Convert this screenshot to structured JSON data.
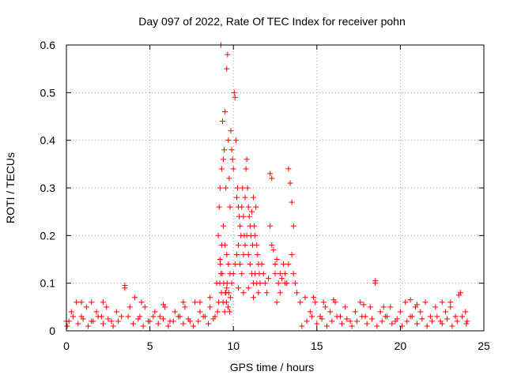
{
  "chart_data": {
    "type": "scatter",
    "title": "Day 097 of 2022, Rate Of TEC Index for receiver pohn",
    "xlabel": "GPS time / hours",
    "ylabel": "ROTI / TECUs",
    "xlim": [
      0,
      25
    ],
    "ylim": [
      0,
      0.6
    ],
    "x_ticks": [
      0,
      5,
      10,
      15,
      20,
      25
    ],
    "y_ticks": [
      0,
      0.1,
      0.2,
      0.3,
      0.4,
      0.5,
      0.6
    ],
    "x_tick_labels": [
      "0",
      "5",
      "10",
      "15",
      "20",
      "25"
    ],
    "y_tick_labels": [
      "0",
      "0.1",
      "0.2",
      "0.3",
      "0.4",
      "0.5",
      "0.6"
    ],
    "grid": true,
    "marker": "+",
    "color": "#ff0000",
    "series": [
      {
        "x": [
          0.0,
          0.3,
          0.6,
          0.9,
          1.2,
          1.5,
          1.8,
          2.1,
          2.4,
          2.7,
          3.0,
          3.3,
          3.5,
          3.8,
          4.1,
          4.4,
          4.7,
          5.0,
          5.3,
          5.6,
          5.9,
          6.2,
          6.5,
          6.8,
          7.1,
          7.4,
          7.7,
          8.0,
          8.3,
          8.6,
          8.9,
          9.0,
          9.1,
          9.15,
          9.2,
          9.25,
          9.3,
          9.35,
          9.4,
          9.45,
          9.5,
          9.55,
          9.6,
          9.65,
          9.7,
          9.75,
          9.8,
          9.85,
          9.9,
          9.95,
          10.0,
          10.05,
          10.1,
          10.15,
          10.2,
          10.25,
          10.3,
          10.35,
          10.4,
          10.45,
          10.5,
          10.55,
          10.6,
          10.65,
          10.7,
          10.75,
          10.8,
          10.85,
          10.9,
          10.95,
          11.0,
          11.05,
          11.1,
          11.15,
          11.2,
          11.25,
          11.3,
          11.35,
          11.4,
          11.45,
          11.5,
          11.55,
          11.6,
          11.7,
          11.8,
          11.9,
          12.0,
          12.1,
          12.2,
          12.3,
          12.4,
          12.5,
          12.6,
          12.7,
          12.8,
          12.9,
          13.0,
          13.1,
          13.2,
          13.3,
          13.4,
          13.5,
          13.6,
          13.7,
          13.8,
          14.0,
          14.3,
          14.6,
          14.9,
          15.2,
          15.5,
          15.8,
          16.1,
          16.4,
          16.7,
          17.0,
          17.3,
          17.6,
          17.9,
          18.2,
          18.5,
          18.8,
          19.1,
          19.4,
          19.7,
          20.0,
          20.3,
          20.6,
          20.9,
          21.2,
          21.5,
          21.8,
          22.1,
          22.4,
          22.7,
          23.0,
          23.3,
          23.6,
          23.9,
          24.0,
          9.2,
          9.25,
          9.3,
          9.4,
          9.5,
          9.6,
          9.7,
          9.8,
          9.9,
          10.0,
          10.1,
          10.2,
          10.3,
          10.4,
          10.5,
          10.6,
          10.7,
          10.8,
          10.9,
          11.0,
          11.1,
          11.2,
          11.3,
          11.4,
          11.5,
          12.2,
          12.3,
          12.5,
          12.8,
          13.1,
          13.3,
          13.5,
          13.6,
          9.55,
          9.6,
          10.3,
          10.6,
          10.9,
          11.2,
          12.6,
          3.5,
          18.5,
          0.9,
          7.0,
          8.0,
          8.6,
          16.0,
          17.8,
          20.6,
          22.5,
          23.5,
          23.0,
          4.5,
          5.8,
          1.5,
          2.2,
          14.8,
          15.4,
          19.0,
          21.0,
          0.05,
          0.15,
          0.4,
          0.7,
          1.0,
          1.3,
          1.6,
          1.9,
          2.2,
          2.5,
          2.8,
          3.1,
          3.7,
          4.0,
          4.3,
          4.6,
          4.9,
          5.2,
          5.5,
          5.8,
          6.1,
          6.4,
          6.7,
          7.0,
          7.3,
          7.6,
          7.9,
          8.2,
          8.5,
          8.8,
          14.1,
          14.4,
          14.7,
          15.0,
          15.3,
          15.6,
          15.9,
          16.2,
          16.5,
          16.8,
          17.1,
          17.4,
          17.7,
          18.0,
          18.3,
          18.6,
          18.9,
          19.2,
          19.5,
          19.8,
          20.1,
          20.4,
          20.7,
          21.0,
          21.3,
          21.6,
          21.9,
          22.2,
          22.5,
          22.8,
          23.1,
          23.4,
          23.7,
          23.95,
          9.05,
          9.12,
          9.18,
          9.22,
          9.28,
          9.33,
          9.38,
          9.42,
          9.48,
          9.52,
          9.58,
          9.62,
          9.68,
          9.72,
          9.78,
          9.82
        ],
        "y": [
          0.02,
          0.04,
          0.06,
          0.03,
          0.05,
          0.02,
          0.04,
          0.03,
          0.05,
          0.02,
          0.04,
          0.03,
          0.095,
          0.05,
          0.07,
          0.03,
          0.05,
          0.02,
          0.04,
          0.03,
          0.05,
          0.02,
          0.04,
          0.03,
          0.05,
          0.02,
          0.06,
          0.04,
          0.03,
          0.05,
          0.03,
          0.1,
          0.2,
          0.26,
          0.3,
          0.6,
          0.34,
          0.44,
          0.36,
          0.38,
          0.46,
          0.3,
          0.55,
          0.58,
          0.4,
          0.32,
          0.26,
          0.42,
          0.38,
          0.36,
          0.34,
          0.5,
          0.49,
          0.4,
          0.28,
          0.3,
          0.26,
          0.24,
          0.22,
          0.2,
          0.26,
          0.3,
          0.24,
          0.2,
          0.28,
          0.34,
          0.36,
          0.3,
          0.26,
          0.24,
          0.22,
          0.2,
          0.25,
          0.18,
          0.28,
          0.22,
          0.2,
          0.26,
          0.18,
          0.16,
          0.14,
          0.12,
          0.1,
          0.14,
          0.12,
          0.1,
          0.08,
          0.11,
          0.33,
          0.32,
          0.17,
          0.12,
          0.15,
          0.1,
          0.08,
          0.11,
          0.14,
          0.12,
          0.1,
          0.34,
          0.31,
          0.27,
          0.22,
          0.1,
          0.08,
          0.06,
          0.07,
          0.04,
          0.06,
          0.03,
          0.05,
          0.04,
          0.06,
          0.03,
          0.05,
          0.02,
          0.04,
          0.06,
          0.03,
          0.05,
          0.105,
          0.04,
          0.03,
          0.05,
          0.02,
          0.04,
          0.06,
          0.03,
          0.05,
          0.04,
          0.06,
          0.03,
          0.05,
          0.02,
          0.04,
          0.06,
          0.03,
          0.08,
          0.04,
          0.02,
          0.15,
          0.12,
          0.18,
          0.22,
          0.18,
          0.16,
          0.14,
          0.12,
          0.1,
          0.12,
          0.14,
          0.16,
          0.18,
          0.14,
          0.12,
          0.16,
          0.18,
          0.2,
          0.16,
          0.14,
          0.12,
          0.1,
          0.12,
          0.1,
          0.08,
          0.22,
          0.18,
          0.14,
          0.12,
          0.1,
          0.14,
          0.16,
          0.12,
          0.08,
          0.09,
          0.09,
          0.08,
          0.09,
          0.07,
          0.06,
          0.09,
          0.1,
          0.06,
          0.06,
          0.06,
          0.07,
          0.065,
          0.055,
          0.065,
          0.06,
          0.075,
          0.05,
          0.06,
          0.055,
          0.06,
          0.06,
          0.07,
          0.06,
          0.05,
          0.055,
          0.01,
          0.02,
          0.03,
          0.015,
          0.025,
          0.01,
          0.02,
          0.03,
          0.015,
          0.025,
          0.01,
          0.02,
          0.03,
          0.015,
          0.025,
          0.01,
          0.02,
          0.03,
          0.015,
          0.025,
          0.01,
          0.02,
          0.03,
          0.015,
          0.025,
          0.01,
          0.02,
          0.03,
          0.015,
          0.025,
          0.01,
          0.02,
          0.03,
          0.015,
          0.025,
          0.01,
          0.02,
          0.03,
          0.015,
          0.025,
          0.01,
          0.02,
          0.03,
          0.015,
          0.025,
          0.01,
          0.02,
          0.03,
          0.015,
          0.025,
          0.01,
          0.02,
          0.03,
          0.015,
          0.025,
          0.01,
          0.02,
          0.03,
          0.015,
          0.025,
          0.01,
          0.02,
          0.03,
          0.015,
          0.04,
          0.06,
          0.1,
          0.14,
          0.08,
          0.12,
          0.06,
          0.1,
          0.04,
          0.08,
          0.06,
          0.1,
          0.05,
          0.08,
          0.04,
          0.07
        ]
      }
    ]
  }
}
